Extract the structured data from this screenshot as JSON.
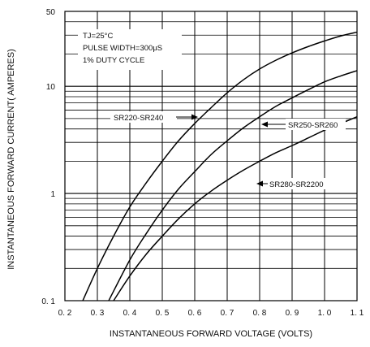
{
  "chart_data": {
    "type": "line",
    "xlabel": "INSTANTANEOUS FORWARD VOLTAGE (VOLTS)",
    "ylabel": "INSTANTANEOUS FORWARD CURRENT( AMPERES)",
    "xlim": [
      0.2,
      1.1
    ],
    "ylim": [
      0.1,
      50
    ],
    "yscale": "log",
    "grid": true,
    "x_ticks": [
      0.2,
      0.3,
      0.4,
      0.5,
      0.6,
      0.7,
      0.8,
      0.9,
      1.0,
      1.1
    ],
    "x_tick_labels": [
      "0. 2",
      "0. 3",
      "0. 4",
      "0. 5",
      "0. 6",
      "0. 7",
      "0. 8",
      "0. 9",
      "1. 0",
      "1. 1"
    ],
    "y_ticks": [
      0.1,
      1,
      10,
      50
    ],
    "y_tick_labels": [
      "0. 1",
      "1",
      "10",
      "50"
    ],
    "annotations": [
      "TJ=25°C",
      "PULSE WIDTH=300μS",
      "1% DUTY CYCLE"
    ],
    "series": [
      {
        "name": "SR220-SR240",
        "x": [
          0.255,
          0.3,
          0.35,
          0.4,
          0.45,
          0.5,
          0.55,
          0.6,
          0.65,
          0.7,
          0.75,
          0.8,
          0.85,
          0.9,
          0.95,
          1.0,
          1.05,
          1.1
        ],
        "y": [
          0.1,
          0.2,
          0.4,
          0.75,
          1.25,
          2.0,
          3.1,
          4.5,
          6.3,
          8.7,
          11.5,
          14.5,
          17.5,
          20.5,
          23.5,
          26.5,
          29.5,
          32
        ]
      },
      {
        "name": "SR250-SR260",
        "x": [
          0.335,
          0.4,
          0.45,
          0.5,
          0.55,
          0.6,
          0.65,
          0.7,
          0.75,
          0.8,
          0.85,
          0.9,
          0.95,
          1.0,
          1.05,
          1.1
        ],
        "y": [
          0.1,
          0.24,
          0.42,
          0.7,
          1.1,
          1.6,
          2.3,
          3.1,
          4.1,
          5.2,
          6.5,
          7.8,
          9.3,
          11.0,
          12.5,
          14.0
        ]
      },
      {
        "name": "SR280-SR2200",
        "x": [
          0.35,
          0.4,
          0.45,
          0.5,
          0.55,
          0.6,
          0.65,
          0.7,
          0.75,
          0.8,
          0.85,
          0.9,
          0.95,
          1.0,
          1.05,
          1.1
        ],
        "y": [
          0.1,
          0.17,
          0.27,
          0.4,
          0.58,
          0.8,
          1.05,
          1.33,
          1.65,
          2.0,
          2.4,
          2.8,
          3.3,
          3.9,
          4.5,
          5.2
        ]
      }
    ],
    "series_labels": [
      {
        "text": "SR220-SR240",
        "at": [
          0.6,
          4.5
        ]
      },
      {
        "text": "SR250-SR260",
        "at": [
          0.8,
          4.5
        ]
      },
      {
        "text": "SR280-SR2200",
        "at": [
          0.79,
          1.38
        ]
      }
    ]
  }
}
